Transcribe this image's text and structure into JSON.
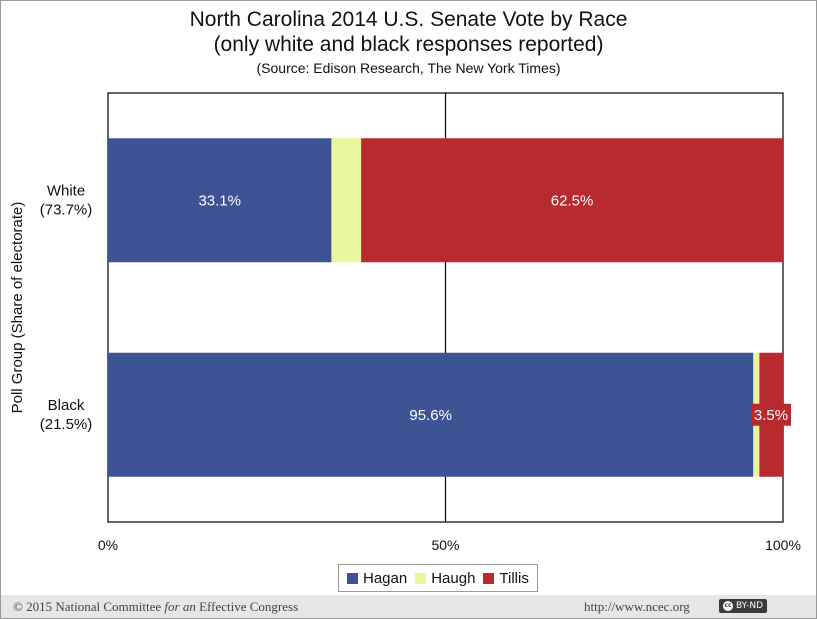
{
  "chart_data": {
    "type": "bar",
    "orientation": "horizontal",
    "stacked": true,
    "title": "North Carolina 2014 U.S. Senate Vote by Race",
    "subtitle": "(only white and black responses reported)",
    "source": "(Source: Edison Research, The New York Times)",
    "ylabel": "Poll Group (Share of electorate)",
    "xlabel": "",
    "xlim": [
      0,
      100
    ],
    "x_ticks": [
      "0%",
      "50%",
      "100%"
    ],
    "categories": [
      {
        "name": "White",
        "share": "(73.7%)"
      },
      {
        "name": "Black",
        "share": "(21.5%)"
      }
    ],
    "series": [
      {
        "name": "Hagan",
        "color": "#3e5394",
        "values": [
          33.1,
          95.6
        ],
        "labels": [
          "33.1%",
          "95.6%"
        ]
      },
      {
        "name": "Haugh",
        "color": "#e9f69c",
        "values": [
          4.4,
          0.9
        ],
        "labels": [
          "",
          ""
        ]
      },
      {
        "name": "Tillis",
        "color": "#b92a30",
        "values": [
          62.5,
          3.5
        ],
        "labels": [
          "62.5%",
          "3.5%"
        ]
      }
    ],
    "legend_position": "bottom",
    "grid": false
  },
  "footer": {
    "copyright_pre": "© 2015 National Committee ",
    "copyright_italic": "for an",
    "copyright_post": " Effective Congress",
    "url": "http://www.ncec.org",
    "license": "BY-ND"
  }
}
